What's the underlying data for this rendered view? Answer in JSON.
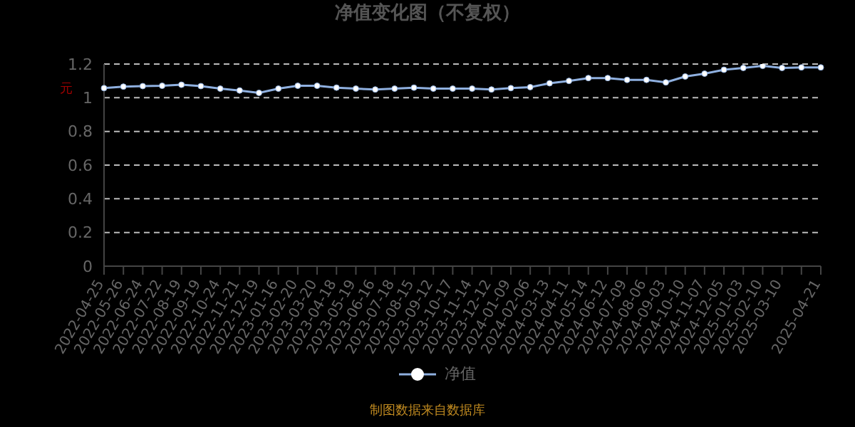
{
  "chart_data": {
    "type": "line",
    "title": "净值变化图（不复权）",
    "ylabel": "元",
    "categories": [
      "2022-04-25",
      "2022-05-26",
      "2022-06-24",
      "2022-07-22",
      "2022-08-19",
      "2022-09-19",
      "2022-10-24",
      "2022-11-21",
      "2022-12-19",
      "2023-01-16",
      "2023-02-20",
      "2023-03-20",
      "2023-04-18",
      "2023-05-19",
      "2023-06-16",
      "2023-07-18",
      "2023-08-15",
      "2023-09-12",
      "2023-10-17",
      "2023-11-14",
      "2023-12-12",
      "2024-01-09",
      "2024-02-06",
      "2024-03-13",
      "2024-04-11",
      "2024-05-14",
      "2024-06-12",
      "2024-07-09",
      "2024-08-06",
      "2024-09-03",
      "2024-10-10",
      "2024-11-07",
      "2024-12-05",
      "2025-01-03",
      "2025-02-10",
      "2025-03-10",
      null,
      "2025-04-21"
    ],
    "series": [
      {
        "name": "净值",
        "color": "#8fb0e0",
        "values": [
          1.057,
          1.066,
          1.069,
          1.071,
          1.077,
          1.069,
          1.054,
          1.043,
          1.029,
          1.054,
          1.071,
          1.071,
          1.06,
          1.054,
          1.049,
          1.054,
          1.06,
          1.054,
          1.054,
          1.054,
          1.049,
          1.057,
          1.063,
          1.086,
          1.1,
          1.117,
          1.117,
          1.106,
          1.106,
          1.091,
          1.126,
          1.143,
          1.166,
          1.177,
          1.189,
          1.177,
          1.18,
          1.18
        ]
      }
    ],
    "ylim": [
      0,
      1.2
    ],
    "yticks": [
      0,
      0.2,
      0.4,
      0.6,
      0.8,
      1,
      1.2
    ],
    "grid": "y",
    "legend": "bottom",
    "marker": "circle",
    "line_style": "solid",
    "annotations": [
      "制图数据来自数据库"
    ]
  }
}
